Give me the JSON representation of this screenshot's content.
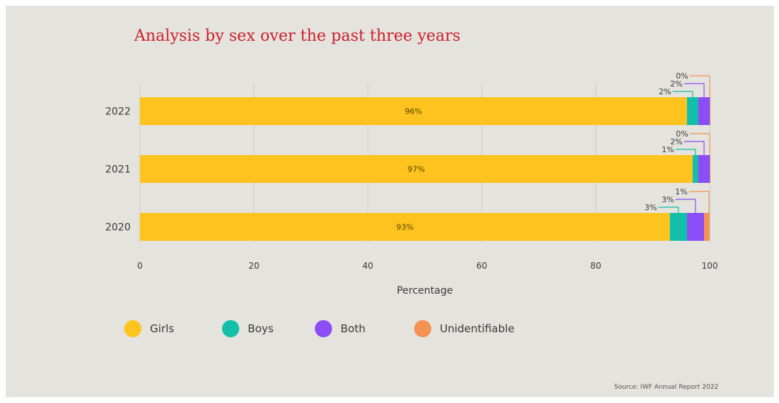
{
  "colors": {
    "background": "#e4e3dd",
    "title": "#cc1f2a",
    "grid": "#cfcdc6",
    "axis_text": "#3a3a3a"
  },
  "chart_data": {
    "type": "bar",
    "orientation": "horizontal",
    "stacked": true,
    "title": "Analysis by sex over the past three years",
    "xlabel": "Percentage",
    "ylabel": "",
    "xlim": [
      0,
      100
    ],
    "xticks": [
      0,
      20,
      40,
      60,
      80,
      100
    ],
    "grid": "vertical",
    "legend_position": "bottom-left",
    "categories": [
      "2022",
      "2021",
      "2020"
    ],
    "series": [
      {
        "name": "Girls",
        "color": "#fec31e",
        "values": [
          96,
          97,
          93
        ],
        "labels": [
          "96%",
          "97%",
          "93%"
        ]
      },
      {
        "name": "Boys",
        "color": "#14bfa9",
        "values": [
          2,
          1,
          3
        ],
        "labels": [
          "2%",
          "1%",
          "3%"
        ]
      },
      {
        "name": "Both",
        "color": "#8a4df6",
        "values": [
          2,
          2,
          3
        ],
        "labels": [
          "2%",
          "2%",
          "3%"
        ]
      },
      {
        "name": "Unidentifiable",
        "color": "#f49253",
        "values": [
          0,
          0,
          1
        ],
        "labels": [
          "0%",
          "0%",
          "1%"
        ]
      }
    ]
  },
  "legend": [
    {
      "label": "Girls",
      "color": "#fec31e"
    },
    {
      "label": "Boys",
      "color": "#14bfa9"
    },
    {
      "label": "Both",
      "color": "#8a4df6"
    },
    {
      "label": "Unidentifiable",
      "color": "#f49253"
    }
  ],
  "source": "Source: IWF Annual Report 2022"
}
